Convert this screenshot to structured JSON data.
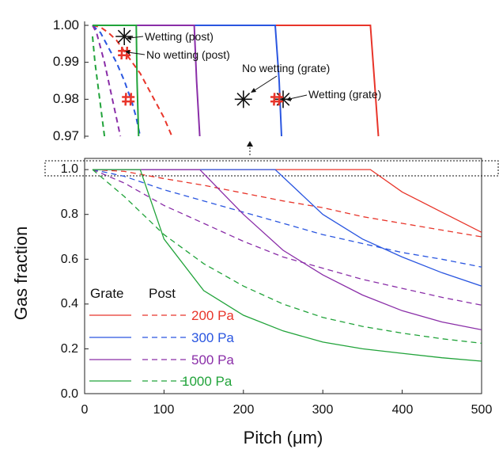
{
  "chart_data": [
    {
      "type": "line",
      "xlabel": "Pitch (μm)",
      "ylabel": "Gas fraction",
      "xlim": [
        0,
        500
      ],
      "ylim": [
        0,
        1.05
      ],
      "x_ticks": [
        "0",
        "100",
        "200",
        "300",
        "400",
        "500"
      ],
      "y_ticks": [
        "0.0",
        "0.2",
        "0.4",
        "0.6",
        "0.8",
        "1.0"
      ],
      "grid": false,
      "legend": {
        "placement": "bottom-left",
        "header_grate": "Grate",
        "header_post": "Post",
        "entries": [
          {
            "label": "200 Pa",
            "color": "#e8352a"
          },
          {
            "label": "300 Pa",
            "color": "#2a56e0"
          },
          {
            "label": "500 Pa",
            "color": "#8a2ea8"
          },
          {
            "label": "1000 Pa",
            "color": "#21a33a"
          }
        ]
      },
      "series": [
        {
          "pressure": "200 Pa",
          "style": "grate-solid",
          "color": "#e8352a",
          "x": [
            10,
            360,
            400,
            450,
            500
          ],
          "y": [
            1.0,
            1.0,
            0.9,
            0.81,
            0.72
          ]
        },
        {
          "pressure": "200 Pa",
          "style": "post-dashed",
          "color": "#e8352a",
          "x": [
            10,
            50,
            100,
            150,
            200,
            250,
            300,
            350,
            400,
            450,
            500
          ],
          "y": [
            1.0,
            0.992,
            0.96,
            0.93,
            0.895,
            0.86,
            0.83,
            0.79,
            0.76,
            0.73,
            0.7
          ]
        },
        {
          "pressure": "300 Pa",
          "style": "grate-solid",
          "color": "#2a56e0",
          "x": [
            10,
            240,
            300,
            350,
            400,
            450,
            500
          ],
          "y": [
            1.0,
            1.0,
            0.8,
            0.69,
            0.61,
            0.54,
            0.48
          ]
        },
        {
          "pressure": "300 Pa",
          "style": "post-dashed",
          "color": "#2a56e0",
          "x": [
            10,
            50,
            100,
            150,
            200,
            250,
            300,
            350,
            400,
            450,
            500
          ],
          "y": [
            1.0,
            0.97,
            0.91,
            0.86,
            0.81,
            0.76,
            0.71,
            0.67,
            0.63,
            0.6,
            0.565
          ]
        },
        {
          "pressure": "500 Pa",
          "style": "grate-solid",
          "color": "#8a2ea8",
          "x": [
            10,
            145,
            200,
            250,
            300,
            350,
            400,
            450,
            500
          ],
          "y": [
            1.0,
            1.0,
            0.8,
            0.64,
            0.53,
            0.44,
            0.37,
            0.32,
            0.285
          ]
        },
        {
          "pressure": "500 Pa",
          "style": "post-dashed",
          "color": "#8a2ea8",
          "x": [
            10,
            50,
            100,
            150,
            200,
            250,
            300,
            350,
            400,
            450,
            500
          ],
          "y": [
            1.0,
            0.94,
            0.84,
            0.76,
            0.68,
            0.61,
            0.56,
            0.51,
            0.47,
            0.43,
            0.395
          ]
        },
        {
          "pressure": "1000 Pa",
          "style": "grate-solid",
          "color": "#21a33a",
          "x": [
            10,
            70,
            100,
            150,
            200,
            250,
            300,
            350,
            400,
            450,
            500
          ],
          "y": [
            1.0,
            1.0,
            0.69,
            0.46,
            0.35,
            0.28,
            0.23,
            0.2,
            0.18,
            0.16,
            0.145
          ]
        },
        {
          "pressure": "1000 Pa",
          "style": "post-dashed",
          "color": "#21a33a",
          "x": [
            10,
            50,
            100,
            150,
            200,
            250,
            300,
            350,
            400,
            450,
            500
          ],
          "y": [
            1.0,
            0.88,
            0.71,
            0.58,
            0.48,
            0.4,
            0.34,
            0.3,
            0.27,
            0.245,
            0.225
          ]
        }
      ]
    },
    {
      "type": "line",
      "xlim": [
        0,
        500
      ],
      "ylim": [
        0.97,
        1.0
      ],
      "y_ticks": [
        "0.97",
        "0.98",
        "0.99",
        "1.00"
      ],
      "annotations": [
        {
          "text": "Wetting (post)",
          "x": 50,
          "y": 0.997,
          "marker": "star"
        },
        {
          "text": "No wetting (post)",
          "x": 50,
          "y": 0.9925,
          "marker": "hash"
        },
        {
          "text": "No wetting (grate)",
          "x": 200,
          "y": 0.98,
          "marker": "star"
        },
        {
          "text": "Wetting (grate)",
          "x": 250,
          "y": 0.98,
          "marker": "star"
        }
      ],
      "extra_markers": [
        {
          "marker": "hash",
          "x": 55,
          "y": 0.98,
          "color": "#e8352a"
        },
        {
          "marker": "hash",
          "x": 242,
          "y": 0.98,
          "color": "#e8352a"
        }
      ],
      "series": [
        {
          "pressure": "200 Pa",
          "style": "grate-solid",
          "color": "#e8352a",
          "x": [
            10,
            360,
            365,
            370
          ],
          "y": [
            1.0,
            1.0,
            0.985,
            0.97
          ]
        },
        {
          "pressure": "200 Pa",
          "style": "post-dashed",
          "color": "#e8352a",
          "x": [
            10,
            20,
            30,
            40,
            50,
            60,
            70,
            80,
            90,
            100,
            110
          ],
          "y": [
            1.0,
            0.9995,
            0.998,
            0.996,
            0.993,
            0.99,
            0.987,
            0.983,
            0.979,
            0.975,
            0.97
          ]
        },
        {
          "pressure": "300 Pa",
          "style": "grate-solid",
          "color": "#2a56e0",
          "x": [
            10,
            240,
            245,
            248
          ],
          "y": [
            1.0,
            1.0,
            0.985,
            0.97
          ]
        },
        {
          "pressure": "300 Pa",
          "style": "post-dashed",
          "color": "#2a56e0",
          "x": [
            10,
            20,
            30,
            40,
            50,
            60,
            65,
            70
          ],
          "y": [
            1.0,
            0.998,
            0.994,
            0.99,
            0.985,
            0.979,
            0.975,
            0.97
          ]
        },
        {
          "pressure": "500 Pa",
          "style": "grate-solid",
          "color": "#8a2ea8",
          "x": [
            10,
            138,
            141,
            145
          ],
          "y": [
            1.0,
            1.0,
            0.985,
            0.97
          ]
        },
        {
          "pressure": "500 Pa",
          "style": "post-dashed",
          "color": "#8a2ea8",
          "x": [
            10,
            15,
            20,
            25,
            30,
            35,
            40,
            45
          ],
          "y": [
            1.0,
            0.998,
            0.994,
            0.99,
            0.985,
            0.98,
            0.975,
            0.97
          ]
        },
        {
          "pressure": "1000 Pa",
          "style": "grate-solid",
          "color": "#21a33a",
          "x": [
            10,
            65,
            66,
            68
          ],
          "y": [
            1.0,
            1.0,
            0.985,
            0.97
          ]
        },
        {
          "pressure": "1000 Pa",
          "style": "post-dashed",
          "color": "#21a33a",
          "x": [
            10,
            13,
            16,
            19,
            22,
            25
          ],
          "y": [
            0.997,
            0.99,
            0.985,
            0.98,
            0.975,
            0.97
          ]
        }
      ]
    }
  ]
}
